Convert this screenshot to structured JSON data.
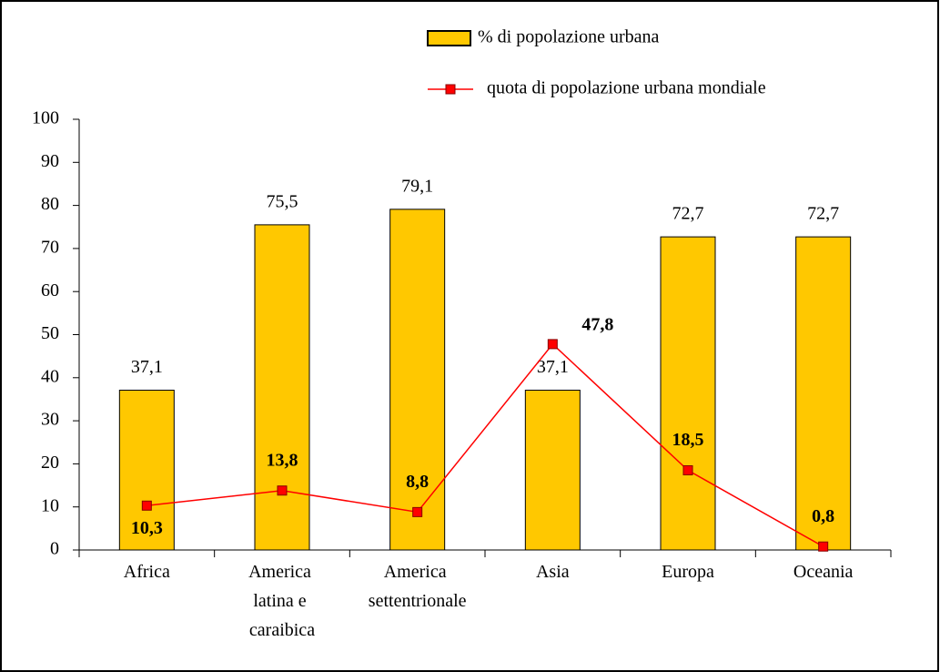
{
  "chart_data": {
    "type": "bar",
    "categories": [
      "Africa",
      "America latina e caraibica",
      "America settentrionale",
      "Asia",
      "Europa",
      "Oceania"
    ],
    "series": [
      {
        "name": "% di popolazione urbana",
        "color": "#ffc800",
        "type": "bar",
        "values": [
          37.1,
          75.5,
          79.1,
          37.1,
          72.7,
          72.7
        ],
        "value_labels": [
          "37,1",
          "75,5",
          "79,1",
          "37,1",
          "72,7",
          "72,7"
        ]
      },
      {
        "name": "quota di popolazione urbana mondiale",
        "color": "#ff0000",
        "type": "line",
        "values": [
          10.3,
          13.8,
          8.8,
          47.8,
          18.5,
          0.8
        ],
        "value_labels": [
          "10,3",
          "13,8",
          "8,8",
          "47,8",
          "18,5",
          "0,8"
        ]
      }
    ],
    "ylim": [
      0,
      100
    ],
    "yticks": [
      0,
      10,
      20,
      30,
      40,
      50,
      60,
      70,
      80,
      90,
      100
    ]
  }
}
